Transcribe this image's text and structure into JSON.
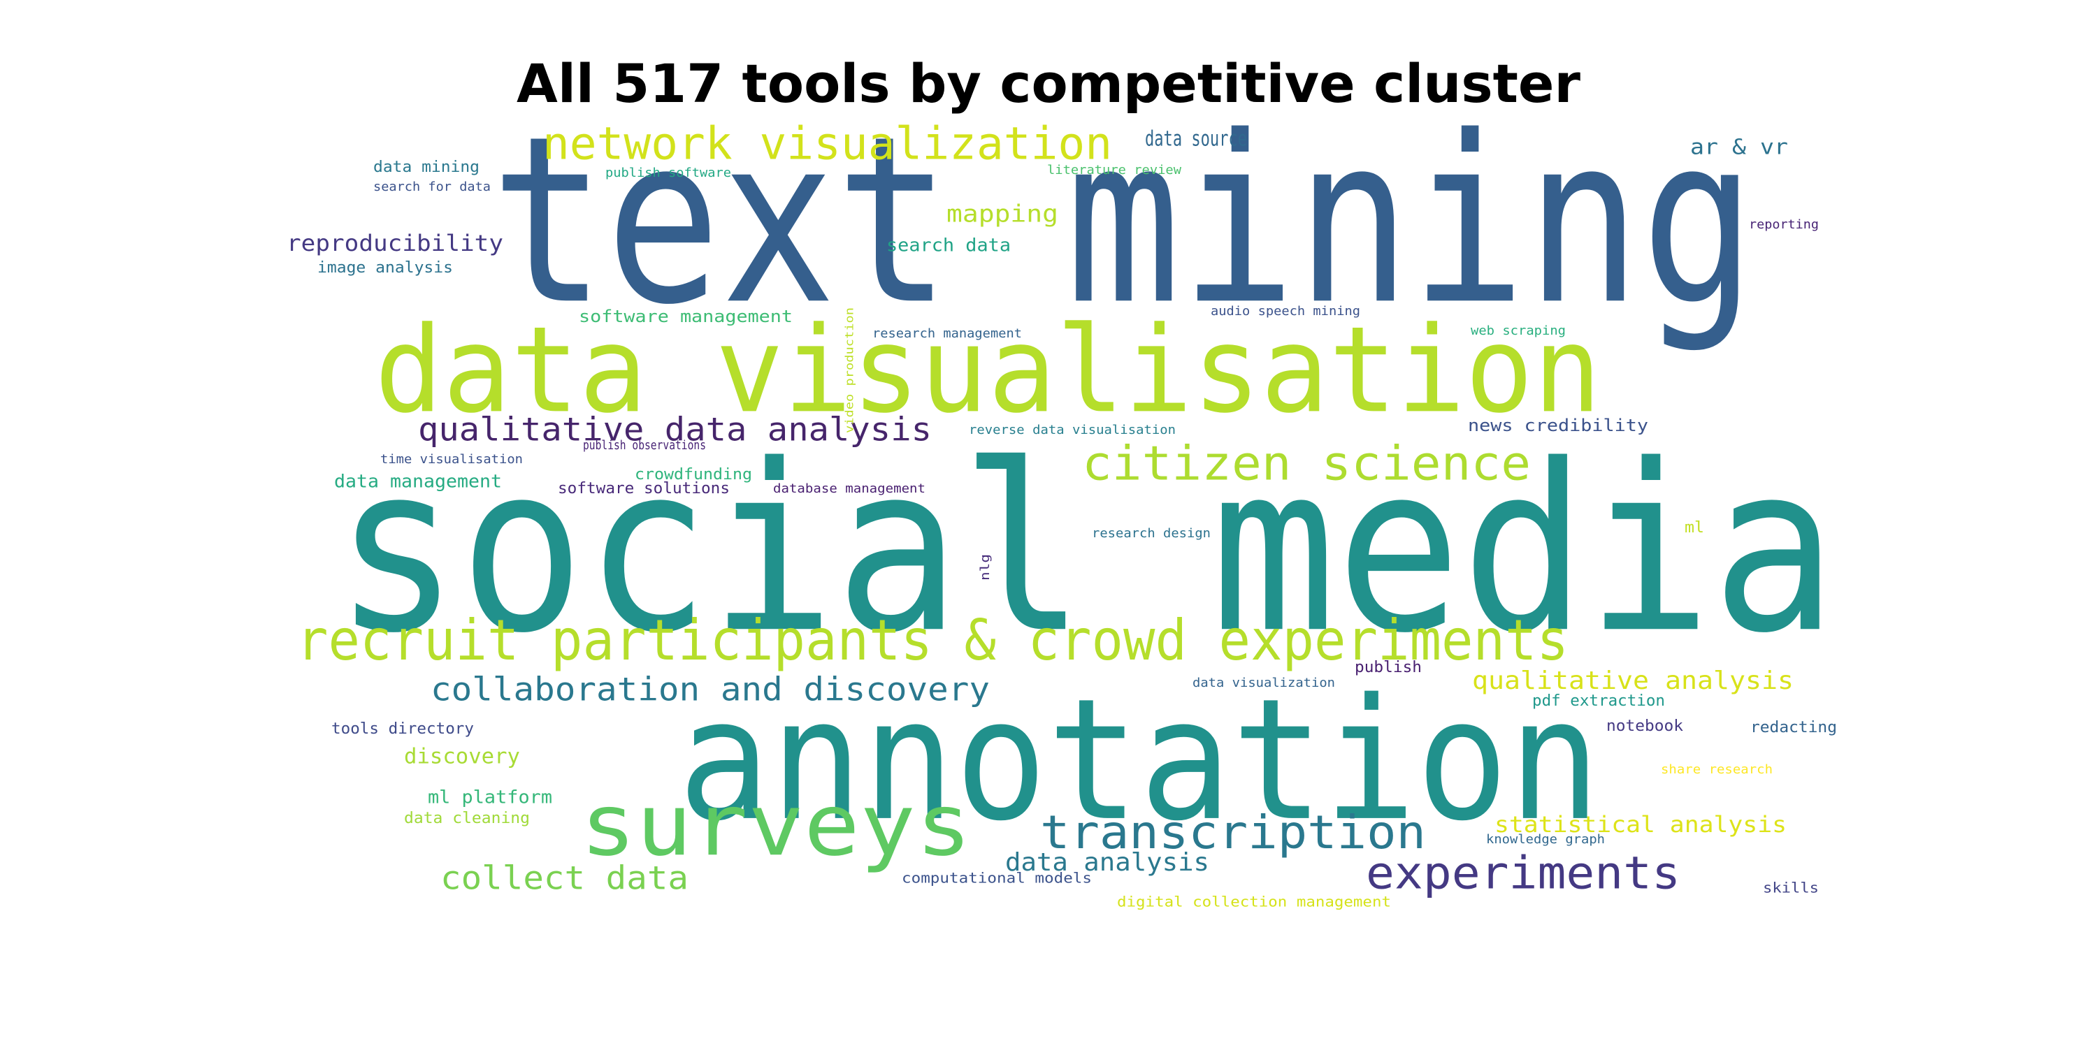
{
  "chart_data": {
    "type": "wordcloud",
    "title": "All 517 tools by competitive cluster",
    "colors": {
      "dark_blue": "#355f8d",
      "teal": "#21918c",
      "teal_alt": "#2a788e",
      "light_green": "#b5de2b",
      "green": "#5ec962",
      "mid_green": "#35b779",
      "yellow": "#e3e418",
      "purple": "#443983",
      "dark_purple": "#46256b",
      "blue": "#3e4a89"
    },
    "words": [
      {
        "text": "text mining",
        "color": "#355f8d"
      },
      {
        "text": "social media",
        "color": "#21918c"
      },
      {
        "text": "annotation",
        "color": "#21918c"
      },
      {
        "text": "data visualisation",
        "color": "#b5de2b"
      },
      {
        "text": "recruit participants & crowd experiments",
        "color": "#b5de2b"
      },
      {
        "text": "surveys",
        "color": "#5ec962"
      },
      {
        "text": "network visualization",
        "color": "#d2e21b"
      },
      {
        "text": "citizen science",
        "color": "#addc30"
      },
      {
        "text": "transcription",
        "color": "#2a788e"
      },
      {
        "text": "experiments",
        "color": "#443983"
      },
      {
        "text": "qualitative data analysis",
        "color": "#46256b"
      },
      {
        "text": "collaboration and discovery",
        "color": "#2a788e"
      },
      {
        "text": "collect data",
        "color": "#7ad151"
      },
      {
        "text": "qualitative analysis",
        "color": "#d8e219"
      },
      {
        "text": "data analysis",
        "color": "#2a788e"
      },
      {
        "text": "statistical analysis",
        "color": "#dde318"
      },
      {
        "text": "reproducibility",
        "color": "#443983"
      },
      {
        "text": "mapping",
        "color": "#b5de2b"
      },
      {
        "text": "discovery",
        "color": "#a8db34"
      },
      {
        "text": "data source",
        "color": "#31688e"
      },
      {
        "text": "ar & vr",
        "color": "#2c728e"
      },
      {
        "text": "data management",
        "color": "#25ab82"
      },
      {
        "text": "ml platform",
        "color": "#35b779"
      },
      {
        "text": "search data",
        "color": "#20a386"
      },
      {
        "text": "software management",
        "color": "#3dbc74"
      },
      {
        "text": "news credibility",
        "color": "#3b528b"
      },
      {
        "text": "software solutions",
        "color": "#482979"
      },
      {
        "text": "crowdfunding",
        "color": "#2fb47c"
      },
      {
        "text": "data mining",
        "color": "#2a788e"
      },
      {
        "text": "tools directory",
        "color": "#3e4a89"
      },
      {
        "text": "image analysis",
        "color": "#2c728e"
      },
      {
        "text": "data cleaning",
        "color": "#a0da39"
      },
      {
        "text": "notebook",
        "color": "#443983"
      },
      {
        "text": "redacting",
        "color": "#33638d"
      },
      {
        "text": "pdf extraction",
        "color": "#1f988b"
      },
      {
        "text": "publish",
        "color": "#481f70"
      },
      {
        "text": "ml",
        "color": "#c2df23"
      },
      {
        "text": "computational models",
        "color": "#3b528b"
      },
      {
        "text": "digital collection management",
        "color": "#d5e21a"
      },
      {
        "text": "skills",
        "color": "#414487"
      },
      {
        "text": "knowledge graph",
        "color": "#31688e"
      },
      {
        "text": "share research",
        "color": "#fde725"
      },
      {
        "text": "reporting",
        "color": "#482475"
      },
      {
        "text": "web scraping",
        "color": "#29af7f"
      },
      {
        "text": "audio speech mining",
        "color": "#3b528b"
      },
      {
        "text": "research management",
        "color": "#33638d"
      },
      {
        "text": "reverse data visualisation",
        "color": "#277f8e"
      },
      {
        "text": "data visualization",
        "color": "#33638d"
      },
      {
        "text": "research design",
        "color": "#2c728e"
      },
      {
        "text": "database management",
        "color": "#481f70"
      },
      {
        "text": "publish observations",
        "color": "#482475"
      },
      {
        "text": "time visualisation",
        "color": "#3b528b"
      },
      {
        "text": "search for data",
        "color": "#3b528b"
      },
      {
        "text": "publish software",
        "color": "#22a884"
      },
      {
        "text": "literature review",
        "color": "#4ac16d"
      },
      {
        "text": "video production",
        "color": "#bddf26"
      },
      {
        "text": "nlg",
        "color": "#472d7b"
      }
    ]
  }
}
